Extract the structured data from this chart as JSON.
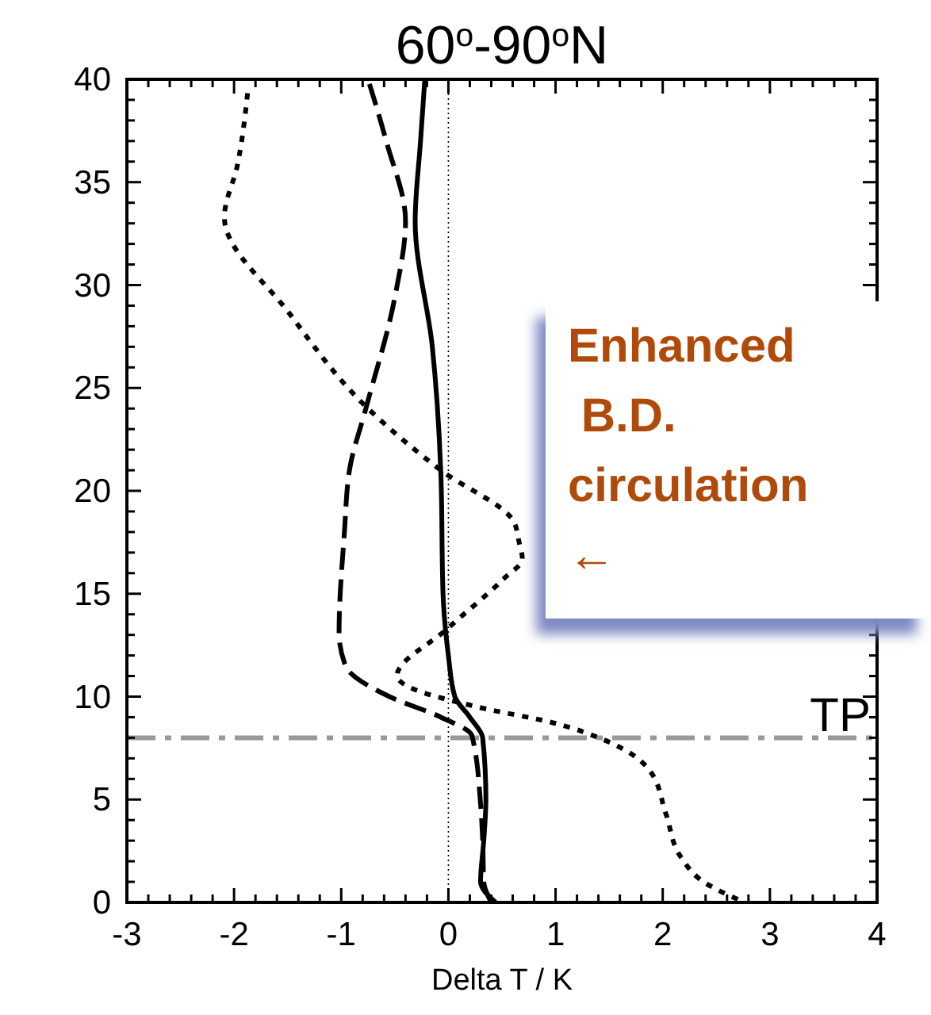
{
  "chart_data": {
    "type": "line",
    "title": "60$^{o}$-90$^{o}$N",
    "xlabel": "Delta T / K",
    "xlim": [
      -3,
      4
    ],
    "xticks": [
      -3,
      -2,
      -1,
      0,
      1,
      2,
      3,
      4
    ],
    "ylim": [
      0,
      40
    ],
    "yticks": [
      0,
      5,
      10,
      15,
      20,
      25,
      30,
      35,
      40
    ],
    "grid": false,
    "series": [
      {
        "color": "#000000",
        "line_style": "solid",
        "x": [
          0.44,
          0.3,
          0.33,
          0.35,
          0.32,
          0.2,
          0.06,
          0.0,
          -0.05,
          -0.07,
          -0.15,
          -0.31,
          -0.26,
          -0.22
        ],
        "values": [
          0,
          1,
          3,
          5,
          8,
          9,
          10,
          12,
          15,
          20.8,
          27,
          33.1,
          37,
          40
        ]
      },
      {
        "color": "#000000",
        "line_style": "dashed",
        "x": [
          0.4,
          0.33,
          0.32,
          0.3,
          0.22,
          -0.07,
          -0.55,
          -0.96,
          -1.02,
          -0.97,
          -0.92,
          -0.77,
          -0.5,
          -0.4,
          -0.58,
          -0.75
        ],
        "values": [
          0,
          1,
          3,
          4.8,
          8.1,
          9,
          10,
          11.5,
          13.1,
          18,
          21.1,
          24,
          29.4,
          33.1,
          37,
          40
        ]
      },
      {
        "color": "#000000",
        "line_style": "dotted",
        "x": [
          2.7,
          2.41,
          2.17,
          2.03,
          1.88,
          1.45,
          1.0,
          0.27,
          -0.38,
          -0.48,
          -0.01,
          0.51,
          0.69,
          0.66,
          0.61,
          -0.07,
          -0.75,
          -1.48,
          -2.09,
          -1.97,
          -1.87
        ],
        "values": [
          0.15,
          0.9,
          2.2,
          4.3,
          6.4,
          7.9,
          8.7,
          9.5,
          10.5,
          11,
          13.3,
          15.7,
          16.7,
          17.5,
          18.5,
          21,
          24,
          28.6,
          33.3,
          35.8,
          39.5
        ]
      }
    ],
    "ref_lines": [
      {
        "axis": "y",
        "value": 8,
        "label": "TP",
        "color": "#999999",
        "line_style": "dashdot"
      },
      {
        "axis": "x",
        "value": 0,
        "label": null,
        "color": "#000000",
        "line_style": "dotted"
      }
    ],
    "annotations": [
      "Enhanced\n B.D.\ncirculation\n←"
    ]
  }
}
